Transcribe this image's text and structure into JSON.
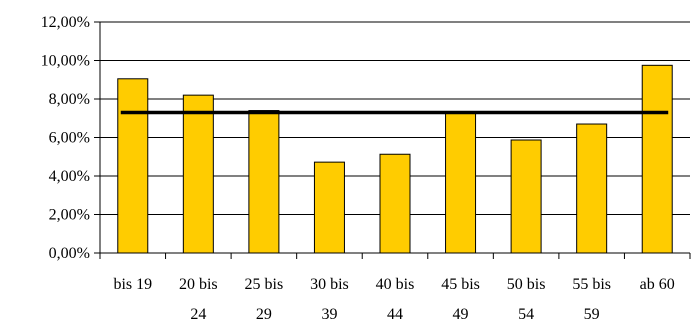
{
  "chart_data": {
    "type": "bar",
    "categories": [
      [
        "bis 19"
      ],
      [
        "20 bis",
        "24"
      ],
      [
        "25 bis",
        "29"
      ],
      [
        "30 bis",
        "39"
      ],
      [
        "40 bis",
        "44"
      ],
      [
        "45 bis",
        "49"
      ],
      [
        "50 bis",
        "54"
      ],
      [
        "55 bis",
        "59"
      ],
      [
        "ab 60"
      ]
    ],
    "values": [
      9.05,
      8.2,
      7.4,
      4.72,
      5.13,
      7.3,
      5.87,
      6.7,
      9.75
    ],
    "reference_line": 7.3,
    "ylim": [
      0,
      12
    ],
    "yticks": [
      {
        "value": 0,
        "label": "0,00%"
      },
      {
        "value": 2,
        "label": "2,00%"
      },
      {
        "value": 4,
        "label": "4,00%"
      },
      {
        "value": 6,
        "label": "6,00%"
      },
      {
        "value": 8,
        "label": "8,00%"
      },
      {
        "value": 10,
        "label": "10,00%"
      },
      {
        "value": 12,
        "label": "12,00%"
      }
    ],
    "grid": true,
    "bar_color": "#FFCC00",
    "bar_stroke": "#000000",
    "line_color": "#000000",
    "title": "",
    "xlabel": "",
    "ylabel": ""
  }
}
